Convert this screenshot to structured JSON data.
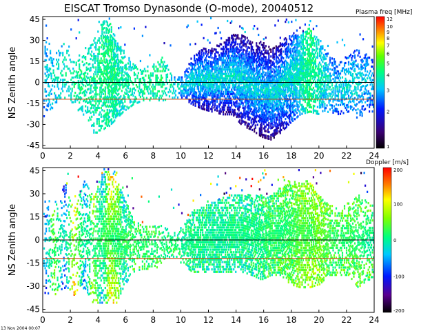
{
  "figure": {
    "title": "EISCAT Tromso Dynasonde (O-mode),  20040512",
    "timestamp": "13 Nov 2004 00:07"
  },
  "chart_data": [
    {
      "type": "heatmap",
      "ylabel": "NS Zenith angle",
      "xlim": [
        0,
        24
      ],
      "ylim": [
        -47,
        47
      ],
      "xticks": [
        "0",
        "2",
        "4",
        "6",
        "8",
        "10",
        "12",
        "14",
        "16",
        "18",
        "20",
        "22",
        "24"
      ],
      "yticks": [
        "45",
        "30",
        "15",
        "0",
        "-15",
        "-30",
        "-45"
      ],
      "ref_lines": [
        {
          "y": 0,
          "color": "#000000"
        },
        {
          "y": -12,
          "color": "#c83c00"
        }
      ],
      "colorbar": {
        "label": "Plasma freq [MHz]",
        "scale": "log",
        "range": [
          1,
          12
        ],
        "ticks": [
          "12",
          "10",
          "9",
          "8",
          "7",
          "6",
          "5",
          "4",
          "3",
          "2",
          "1"
        ]
      },
      "activity": {
        "hours": [
          0.2,
          0.8,
          1.5,
          2.2,
          3.0,
          3.6,
          4.3,
          4.8,
          5.3,
          5.8,
          6.5,
          7.2,
          8.0,
          8.7,
          9.4,
          10.1,
          10.8,
          11.5,
          12.2,
          13.0,
          13.7,
          14.4,
          15.1,
          15.8,
          16.5,
          17.2,
          17.9,
          18.6,
          19.3,
          20.0,
          20.7,
          21.4,
          22.1,
          22.8,
          23.5
        ],
        "density": [
          0.35,
          0.32,
          0.3,
          0.35,
          0.4,
          0.45,
          0.65,
          0.9,
          0.85,
          0.55,
          0.45,
          0.5,
          0.5,
          0.45,
          0.4,
          0.55,
          0.95,
          0.9,
          0.9,
          0.85,
          0.9,
          0.9,
          0.9,
          0.9,
          0.88,
          0.9,
          0.92,
          0.9,
          0.85,
          0.75,
          0.6,
          0.55,
          0.55,
          0.5,
          0.5
        ],
        "top": [
          35,
          20,
          30,
          15,
          25,
          30,
          45,
          45,
          30,
          25,
          15,
          10,
          15,
          20,
          5,
          5,
          20,
          25,
          25,
          30,
          35,
          35,
          30,
          30,
          25,
          30,
          35,
          35,
          40,
          30,
          20,
          15,
          20,
          25,
          20
        ],
        "bottom": [
          -25,
          -15,
          -15,
          -15,
          -25,
          -35,
          -35,
          -30,
          -25,
          -20,
          -15,
          -12,
          -12,
          -12,
          -10,
          -10,
          -15,
          -18,
          -20,
          -22,
          -22,
          -30,
          -33,
          -38,
          -40,
          -35,
          -28,
          -22,
          -20,
          -22,
          -20,
          -22,
          -20,
          -25,
          -20
        ],
        "center_value": [
          3.5,
          3.6,
          3.8,
          4.0,
          4.2,
          4.0,
          4.2,
          4.3,
          4.2,
          4.0,
          4.0,
          4.3,
          4.2,
          4.5,
          3.8,
          3.4,
          3.5,
          3.6,
          3.6,
          3.5,
          3.6,
          3.5,
          3.5,
          3.4,
          3.5,
          3.6,
          3.6,
          3.8,
          4.2,
          3.8,
          3.6,
          3.4,
          3.6,
          3.4,
          3.2
        ],
        "edge_value": [
          2.5,
          3.0,
          3.2,
          3.5,
          3.6,
          3.4,
          4.0,
          3.8,
          3.5,
          3.6,
          3.5,
          3.8,
          3.8,
          3.6,
          3.0,
          2.2,
          1.8,
          1.6,
          1.5,
          1.5,
          1.5,
          1.4,
          1.4,
          1.3,
          1.3,
          1.5,
          2.0,
          3.0,
          4.5,
          3.0,
          2.6,
          2.2,
          2.4,
          2.4,
          2.2
        ]
      }
    },
    {
      "type": "heatmap",
      "ylabel": "NS Zenith angle",
      "xlim": [
        0,
        24
      ],
      "ylim": [
        -47,
        47
      ],
      "xticks": [
        "0",
        "2",
        "4",
        "6",
        "8",
        "10",
        "12",
        "14",
        "16",
        "18",
        "20",
        "22",
        "24"
      ],
      "yticks": [
        "45",
        "30",
        "15",
        "0",
        "-15",
        "-30",
        "-45"
      ],
      "ref_lines": [
        {
          "y": 0,
          "color": "#000000"
        },
        {
          "y": -12,
          "color": "#c83c00"
        }
      ],
      "colorbar": {
        "label": "Doppler [m/s]",
        "scale": "linear",
        "range": [
          -200,
          200
        ],
        "ticks": [
          "200",
          "100",
          "0",
          "-100",
          "-200"
        ]
      },
      "activity": {
        "hours": [
          0.2,
          0.8,
          1.5,
          2.2,
          3.0,
          3.6,
          4.3,
          4.8,
          5.3,
          5.8,
          6.5,
          7.2,
          8.0,
          8.7,
          9.4,
          10.1,
          10.8,
          11.5,
          12.2,
          13.0,
          13.7,
          14.4,
          15.1,
          15.8,
          16.5,
          17.2,
          17.9,
          18.6,
          19.3,
          20.0,
          20.7,
          21.4,
          22.1,
          22.8,
          23.5
        ],
        "density": [
          0.3,
          0.3,
          0.35,
          0.4,
          0.45,
          0.4,
          0.7,
          0.8,
          0.85,
          0.7,
          0.5,
          0.5,
          0.45,
          0.45,
          0.4,
          0.5,
          0.85,
          0.85,
          0.85,
          0.85,
          0.85,
          0.85,
          0.85,
          0.85,
          0.85,
          0.85,
          0.85,
          0.85,
          0.8,
          0.8,
          0.6,
          0.55,
          0.6,
          0.55,
          0.5
        ],
        "top": [
          30,
          20,
          40,
          20,
          40,
          30,
          45,
          45,
          40,
          30,
          15,
          10,
          10,
          10,
          5,
          10,
          20,
          22,
          25,
          28,
          30,
          30,
          30,
          30,
          30,
          35,
          40,
          38,
          40,
          30,
          25,
          20,
          25,
          30,
          25
        ],
        "bottom": [
          -40,
          -35,
          -30,
          -35,
          -30,
          -40,
          -40,
          -40,
          -40,
          -30,
          -20,
          -18,
          -18,
          -15,
          -10,
          -15,
          -20,
          -20,
          -20,
          -20,
          -20,
          -20,
          -22,
          -25,
          -22,
          -22,
          -28,
          -30,
          -30,
          -28,
          -22,
          -22,
          -22,
          -30,
          -25
        ],
        "center_value": [
          -20,
          20,
          -10,
          40,
          10,
          0,
          30,
          20,
          10,
          30,
          20,
          20,
          10,
          10,
          20,
          0,
          10,
          10,
          0,
          0,
          10,
          10,
          10,
          10,
          20,
          10,
          20,
          30,
          20,
          50,
          30,
          20,
          20,
          10,
          0
        ],
        "edge_value": [
          -100,
          80,
          -120,
          150,
          -80,
          100,
          -60,
          120,
          80,
          -40,
          30,
          20,
          20,
          20,
          20,
          10,
          0,
          0,
          0,
          0,
          0,
          0,
          0,
          10,
          20,
          30,
          40,
          60,
          80,
          60,
          40,
          30,
          40,
          50,
          40
        ]
      }
    }
  ]
}
